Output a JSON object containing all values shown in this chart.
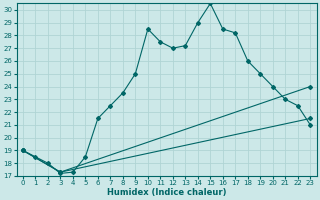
{
  "xlabel": "Humidex (Indice chaleur)",
  "xlim": [
    -0.5,
    23.5
  ],
  "ylim": [
    17,
    30.5
  ],
  "yticks": [
    17,
    18,
    19,
    20,
    21,
    22,
    23,
    24,
    25,
    26,
    27,
    28,
    29,
    30
  ],
  "xticks": [
    0,
    1,
    2,
    3,
    4,
    5,
    6,
    7,
    8,
    9,
    10,
    11,
    12,
    13,
    14,
    15,
    16,
    17,
    18,
    19,
    20,
    21,
    22,
    23
  ],
  "bg_color": "#cce8e8",
  "grid_color": "#b0d4d4",
  "line_color": "#006666",
  "line1_x": [
    0,
    1,
    2,
    3,
    4,
    5,
    6,
    7,
    8,
    9,
    10,
    11,
    12,
    13,
    14,
    15,
    16,
    17,
    18,
    19,
    20,
    21,
    22,
    23
  ],
  "line1_y": [
    19.0,
    18.5,
    18.0,
    17.2,
    17.3,
    18.5,
    21.5,
    22.5,
    23.5,
    25.0,
    28.5,
    27.5,
    27.0,
    27.2,
    29.0,
    30.5,
    28.5,
    28.2,
    26.0,
    25.0,
    24.0,
    23.0,
    22.5,
    21.0
  ],
  "line2_x": [
    0,
    3,
    23
  ],
  "line2_y": [
    19.0,
    17.3,
    24.0
  ],
  "line3_x": [
    0,
    3,
    23
  ],
  "line3_y": [
    19.0,
    17.3,
    21.5
  ]
}
